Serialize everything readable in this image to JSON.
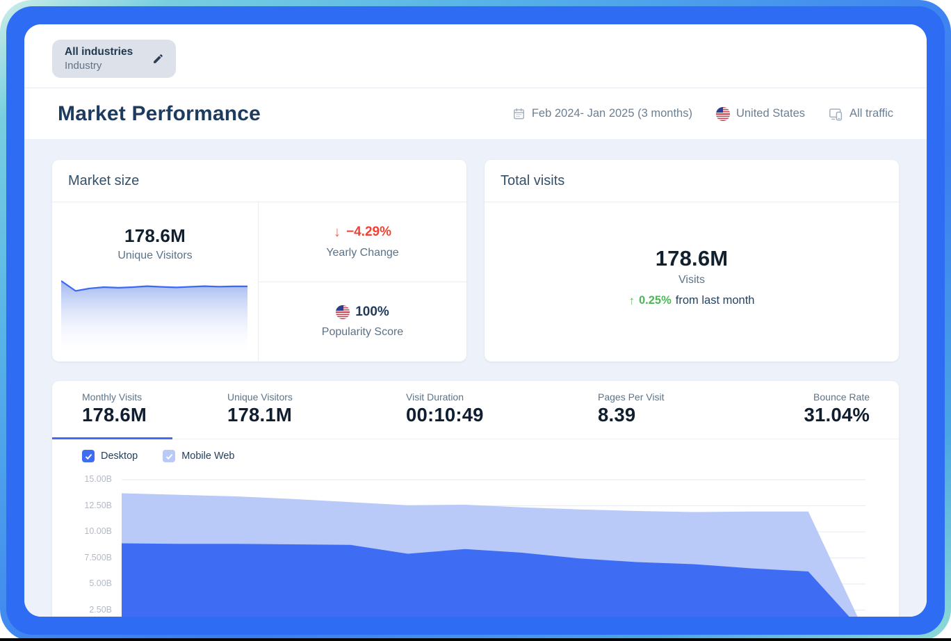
{
  "colors": {
    "accent": "#3e6df4",
    "accent_light": "#b9c9f8",
    "negative": "#ef4435",
    "positive": "#4db656",
    "page_bg": "#edf1f9",
    "frame_blue": "#2e6cf3"
  },
  "industry_chip": {
    "value": "All industries",
    "label": "Industry"
  },
  "header": {
    "title": "Market Performance",
    "date_range": "Feb 2024- Jan 2025 (3 months)",
    "country": "United States",
    "traffic": "All traffic"
  },
  "market_size": {
    "title": "Market size",
    "unique_visitors": {
      "value": "178.6M",
      "label": "Unique Visitors"
    },
    "yearly_change": {
      "value": "−4.29%",
      "label": "Yearly Change",
      "direction": "down"
    },
    "popularity": {
      "value": "100%",
      "label": "Popularity Score"
    },
    "sparkline_unique_visitors_M": [
      183,
      175,
      177,
      178,
      177.5,
      178,
      178.8,
      178.2,
      177.8,
      178.3,
      178.8,
      178.4,
      178.6,
      178.6
    ]
  },
  "total_visits": {
    "title": "Total visits",
    "value": "178.6M",
    "label": "Visits",
    "change_value": "0.25%",
    "change_suffix": "from last month",
    "direction": "up"
  },
  "metrics": [
    {
      "label": "Monthly Visits",
      "value": "178.6M",
      "active": true
    },
    {
      "label": "Unique Visitors",
      "value": "178.1M",
      "active": false
    },
    {
      "label": "Visit Duration",
      "value": "00:10:49",
      "active": false
    },
    {
      "label": "Pages Per Visit",
      "value": "8.39",
      "active": false
    },
    {
      "label": "Bounce Rate",
      "value": "31.04%",
      "active": false
    }
  ],
  "chart_data": {
    "type": "area",
    "stacked": true,
    "title": "Monthly Visits over time (x labels not visible in view)",
    "unit": "B",
    "ylim": [
      0,
      15
    ],
    "yticks": [
      "15.00B",
      "12.50B",
      "10.00B",
      "7.500B",
      "5.00B",
      "2.50B"
    ],
    "grid": true,
    "legend_position": "top-left checkboxes",
    "series": [
      {
        "name": "Desktop",
        "color": "#3e6df4",
        "checked": true,
        "values": [
          8.9,
          8.85,
          8.85,
          8.8,
          8.75,
          7.9,
          8.35,
          8.0,
          7.45,
          7.1,
          6.9,
          6.5,
          6.2,
          0.15
        ]
      },
      {
        "name": "Mobile Web",
        "color": "#b9c9f8",
        "checked": true,
        "values": [
          4.8,
          4.7,
          4.55,
          4.35,
          4.1,
          4.65,
          4.25,
          4.35,
          4.7,
          4.9,
          5.0,
          5.45,
          5.75,
          0.1
        ]
      }
    ]
  }
}
